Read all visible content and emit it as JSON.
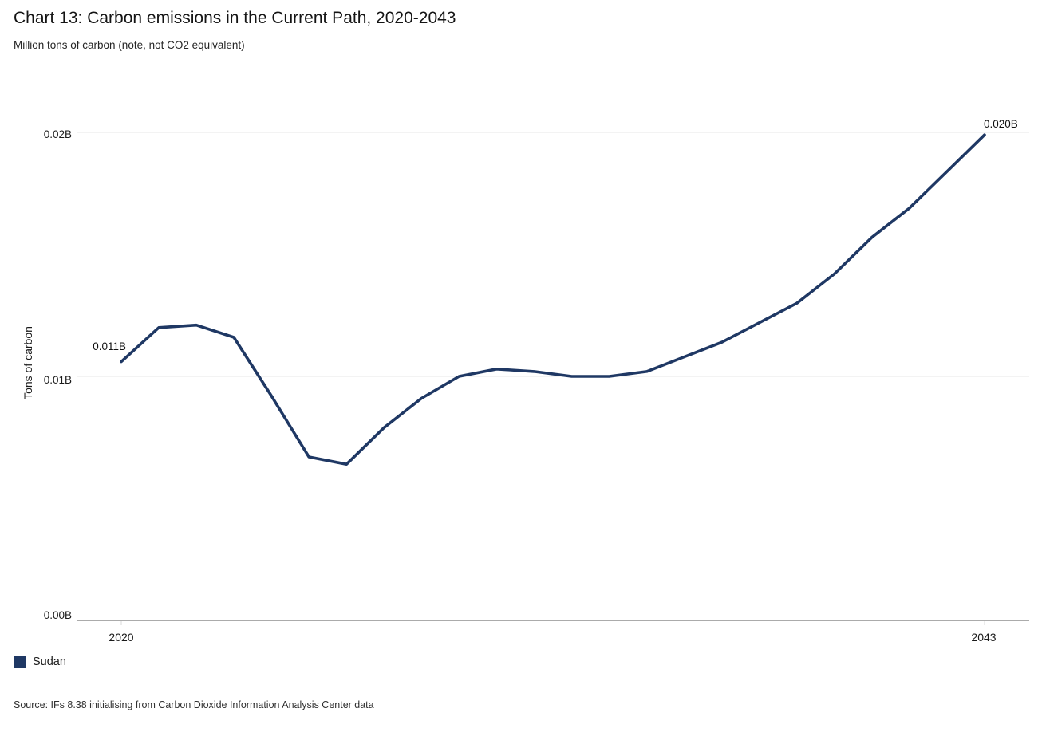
{
  "chart_data": {
    "type": "line",
    "title": "Chart 13: Carbon emissions in the Current Path, 2020-2043",
    "subtitle": "Million tons of carbon (note, not CO2 equivalent)",
    "ylabel": "Tons of carbon",
    "unit": "billion tons of carbon",
    "x": [
      2020,
      2021,
      2022,
      2023,
      2024,
      2025,
      2026,
      2027,
      2028,
      2029,
      2030,
      2031,
      2032,
      2033,
      2034,
      2035,
      2036,
      2037,
      2038,
      2039,
      2040,
      2041,
      2042,
      2043
    ],
    "series": [
      {
        "name": "Sudan",
        "color": "#1F3864",
        "values": [
          0.0106,
          0.012,
          0.0121,
          0.0116,
          0.0092,
          0.0067,
          0.0064,
          0.0079,
          0.0091,
          0.01,
          0.0103,
          0.0102,
          0.01,
          0.01,
          0.0102,
          0.0108,
          0.0114,
          0.0122,
          0.013,
          0.0142,
          0.0157,
          0.0169,
          0.0184,
          0.0199
        ]
      }
    ],
    "y_ticks": [
      {
        "value": 0.0,
        "label": "0.00B"
      },
      {
        "value": 0.01,
        "label": "0.01B"
      },
      {
        "value": 0.02,
        "label": "0.02B"
      }
    ],
    "x_ticks": [
      {
        "value": 2020,
        "label": "2020"
      },
      {
        "value": 2043,
        "label": "2043"
      }
    ],
    "point_labels": [
      {
        "year": 2020,
        "label": "0.011B"
      },
      {
        "year": 2043,
        "label": "0.020B"
      }
    ],
    "ylim": [
      0,
      0.0212
    ],
    "grid": "horizontal",
    "legend_position": "bottom-left"
  },
  "legend": {
    "items": [
      {
        "label": "Sudan",
        "color": "#1F3864"
      }
    ]
  },
  "source": "Source: IFs 8.38 initialising from Carbon Dioxide Information Analysis Center data"
}
